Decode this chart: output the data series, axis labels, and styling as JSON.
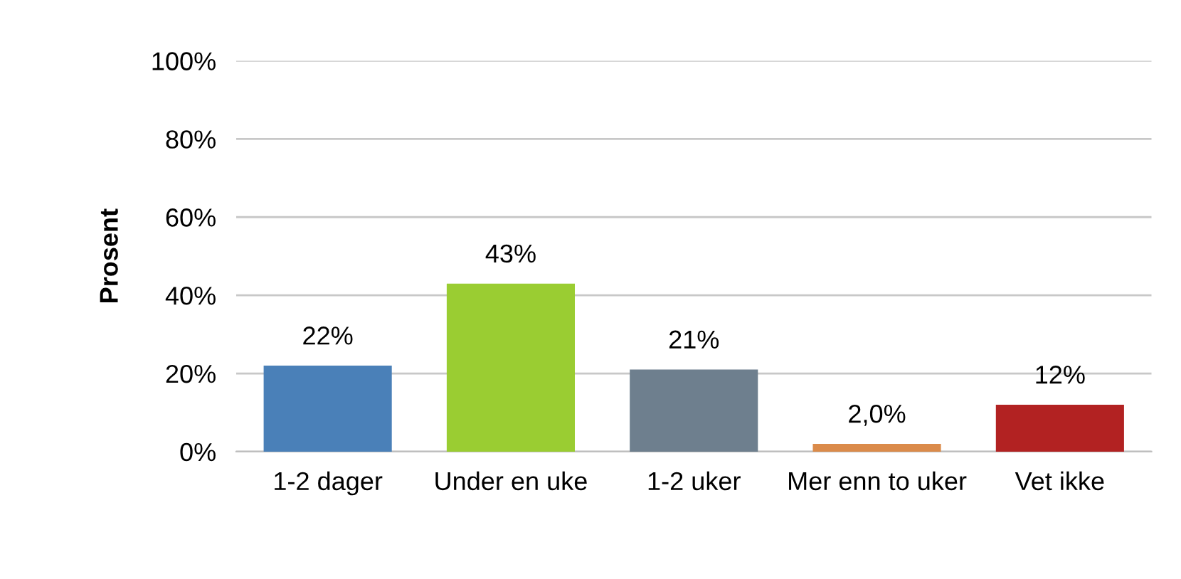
{
  "chart_data": {
    "type": "bar",
    "ylabel": "Prosent",
    "categories": [
      "1-2 dager",
      "Under en uke",
      "1-2 uker",
      "Mer enn to uker",
      "Vet ikke"
    ],
    "values": [
      22,
      43,
      21,
      2.0,
      12
    ],
    "colors": [
      "#4a80b8",
      "#9acd32",
      "#6e7f8e",
      "#db8b4a",
      "#b22222"
    ],
    "value_labels": [
      "22%",
      "43%",
      "21%",
      "2,0%",
      "12%"
    ],
    "ylim": [
      0,
      100
    ],
    "yticks": [
      {
        "value": 0,
        "label": "0%"
      },
      {
        "value": 20,
        "label": "20%"
      },
      {
        "value": 40,
        "label": "40%"
      },
      {
        "value": 60,
        "label": "60%"
      },
      {
        "value": 80,
        "label": "80%"
      },
      {
        "value": 100,
        "label": "100%"
      }
    ],
    "grid": "y",
    "legend": false
  }
}
